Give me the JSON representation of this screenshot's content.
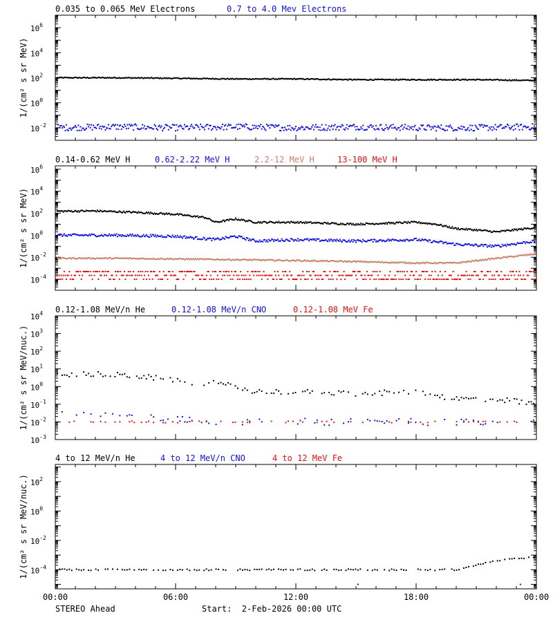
{
  "colors": {
    "black": "#000000",
    "blue": "#1010e0",
    "brown": "#c8806a",
    "red": "#e01010"
  },
  "footer": {
    "left": "STEREO Ahead",
    "start": "Start:  2-Feb-2026 00:00 UTC"
  },
  "chart_data": [
    {
      "type": "scatter",
      "yscale": "log",
      "ylabel": "1/(cm² s sr MeV)",
      "ylim": [
        0.001,
        10000000
      ],
      "yticks": [
        {
          "v": 0.01,
          "e": "-2"
        },
        {
          "v": 1,
          "e": "0"
        },
        {
          "v": 100,
          "e": "2"
        },
        {
          "v": 10000,
          "e": "4"
        },
        {
          "v": 1000000,
          "e": "6"
        }
      ],
      "xlim": [
        0,
        24
      ],
      "series": [
        {
          "name": "0.035 to 0.065 MeV Electrons",
          "color": "#000000",
          "points": [
            [
              0,
              100
            ],
            [
              3,
              100
            ],
            [
              6,
              90
            ],
            [
              9,
              80
            ],
            [
              12,
              80
            ],
            [
              15,
              70
            ],
            [
              18,
              70
            ],
            [
              21,
              70
            ],
            [
              24,
              60
            ]
          ]
        },
        {
          "name": "0.7 to 4.0 Mev Electrons",
          "color": "#1010e0",
          "points": [
            [
              0,
              0.01
            ],
            [
              3,
              0.012
            ],
            [
              6,
              0.01
            ],
            [
              9,
              0.012
            ],
            [
              12,
              0.01
            ],
            [
              15,
              0.012
            ],
            [
              18,
              0.01
            ],
            [
              21,
              0.01
            ],
            [
              24,
              0.012
            ]
          ]
        }
      ]
    },
    {
      "type": "scatter",
      "yscale": "log",
      "ylabel": "1/(cm² s sr MeV)",
      "ylim": [
        1e-05,
        2000000
      ],
      "yticks": [
        {
          "v": 0.0001,
          "e": "-4"
        },
        {
          "v": 0.01,
          "e": "-2"
        },
        {
          "v": 1,
          "e": "0"
        },
        {
          "v": 100,
          "e": "2"
        },
        {
          "v": 10000,
          "e": "4"
        },
        {
          "v": 1000000,
          "e": "6"
        }
      ],
      "xlim": [
        0,
        24
      ],
      "series": [
        {
          "name": "0.14-0.62 MeV H",
          "color": "#000000",
          "points": [
            [
              0,
              150
            ],
            [
              2,
              160
            ],
            [
              4,
              120
            ],
            [
              6,
              80
            ],
            [
              7.5,
              40
            ],
            [
              8,
              15
            ],
            [
              9,
              30
            ],
            [
              10,
              15
            ],
            [
              12,
              15
            ],
            [
              15,
              10
            ],
            [
              18,
              15
            ],
            [
              19,
              10
            ],
            [
              20,
              4
            ],
            [
              21,
              3
            ],
            [
              22,
              2
            ],
            [
              24,
              5
            ]
          ]
        },
        {
          "name": "0.62-2.22 MeV H",
          "color": "#1010e0",
          "points": [
            [
              0,
              1
            ],
            [
              3,
              1
            ],
            [
              6,
              0.8
            ],
            [
              8,
              0.4
            ],
            [
              9,
              0.8
            ],
            [
              10,
              0.3
            ],
            [
              12,
              0.4
            ],
            [
              15,
              0.3
            ],
            [
              18,
              0.4
            ],
            [
              19,
              0.25
            ],
            [
              20,
              0.15
            ],
            [
              22,
              0.1
            ],
            [
              24,
              0.3
            ]
          ]
        },
        {
          "name": "2.2-12 MeV H",
          "color": "#c8806a",
          "points": [
            [
              0,
              0.008
            ],
            [
              3,
              0.008
            ],
            [
              6,
              0.007
            ],
            [
              9,
              0.006
            ],
            [
              12,
              0.005
            ],
            [
              15,
              0.004
            ],
            [
              18,
              0.003
            ],
            [
              20,
              0.003
            ],
            [
              22,
              0.008
            ],
            [
              24,
              0.02
            ]
          ]
        },
        {
          "name": "13-100 MeV H",
          "color": "#e01010",
          "points": [
            [
              0,
              0.0002
            ],
            [
              4,
              0.0002
            ],
            [
              8,
              0.0002
            ],
            [
              12,
              0.0002
            ],
            [
              16,
              0.0002
            ],
            [
              20,
              0.0002
            ],
            [
              24,
              0.0002
            ]
          ]
        }
      ]
    },
    {
      "type": "scatter",
      "yscale": "log",
      "ylabel": "1/(cm² s sr MeV/nuc.)",
      "ylim": [
        0.001,
        10000
      ],
      "yticks": [
        {
          "v": 0.001,
          "e": "-3"
        },
        {
          "v": 0.01,
          "e": "-2"
        },
        {
          "v": 0.1,
          "e": "-1"
        },
        {
          "v": 1,
          "e": "0"
        },
        {
          "v": 10,
          "e": "1"
        },
        {
          "v": 100,
          "e": "2"
        },
        {
          "v": 1000,
          "e": "3"
        },
        {
          "v": 10000,
          "e": "4"
        }
      ],
      "xlim": [
        0,
        24
      ],
      "series": [
        {
          "name": "0.12-1.08 MeV/n He",
          "color": "#000000",
          "points": [
            [
              0,
              5
            ],
            [
              2,
              5
            ],
            [
              4,
              4
            ],
            [
              5,
              3
            ],
            [
              6,
              2
            ],
            [
              8,
              1.5
            ],
            [
              9,
              1
            ],
            [
              10,
              0.5
            ],
            [
              12,
              0.5
            ],
            [
              15,
              0.4
            ],
            [
              18,
              0.5
            ],
            [
              20,
              0.2
            ],
            [
              22,
              0.2
            ],
            [
              24,
              0.1
            ]
          ]
        },
        {
          "name": "0.12-1.08 MeV/n CNO",
          "color": "#1010e0",
          "points": [
            [
              0,
              0.05
            ],
            [
              2,
              0.03
            ],
            [
              4,
              0.03
            ],
            [
              5,
              0.02
            ],
            [
              8,
              0.01
            ],
            [
              12,
              0.01
            ],
            [
              16,
              0.01
            ],
            [
              20,
              0.01
            ],
            [
              24,
              0.01
            ]
          ]
        },
        {
          "name": "0.12-1.08 MeV Fe",
          "color": "#e01010",
          "points": [
            [
              0,
              0.01
            ],
            [
              4,
              0.01
            ],
            [
              8,
              0.01
            ],
            [
              12,
              0.01
            ],
            [
              16,
              0.01
            ],
            [
              20,
              0.01
            ],
            [
              24,
              0.01
            ]
          ]
        }
      ]
    },
    {
      "type": "scatter",
      "yscale": "log",
      "ylabel": "1/(cm² s sr MeV/nuc.)",
      "ylim": [
        5e-06,
        1500
      ],
      "yticks": [
        {
          "v": 0.0001,
          "e": "-4"
        },
        {
          "v": 0.01,
          "e": "-2"
        },
        {
          "v": 1,
          "e": "0"
        },
        {
          "v": 100,
          "e": "2"
        }
      ],
      "xlim": [
        0,
        24
      ],
      "series": [
        {
          "name": "4 to 12 MeV/n He",
          "color": "#000000",
          "points": [
            [
              0,
              0.0001
            ],
            [
              6,
              0.0001
            ],
            [
              12,
              0.0001
            ],
            [
              18,
              0.0001
            ],
            [
              20,
              0.0001
            ],
            [
              21,
              0.0002
            ],
            [
              22,
              0.0004
            ],
            [
              24,
              0.0008
            ]
          ]
        },
        {
          "name": "4 to 12 MeV/n CNO",
          "color": "#1010e0",
          "points": [
            [
              15.1,
              1e-05
            ],
            [
              23.2,
              1e-05
            ]
          ]
        },
        {
          "name": "4 to 12 MeV Fe",
          "color": "#e01010",
          "points": []
        }
      ]
    }
  ],
  "xticks": [
    "00:00",
    "06:00",
    "12:00",
    "18:00",
    "00:00"
  ]
}
